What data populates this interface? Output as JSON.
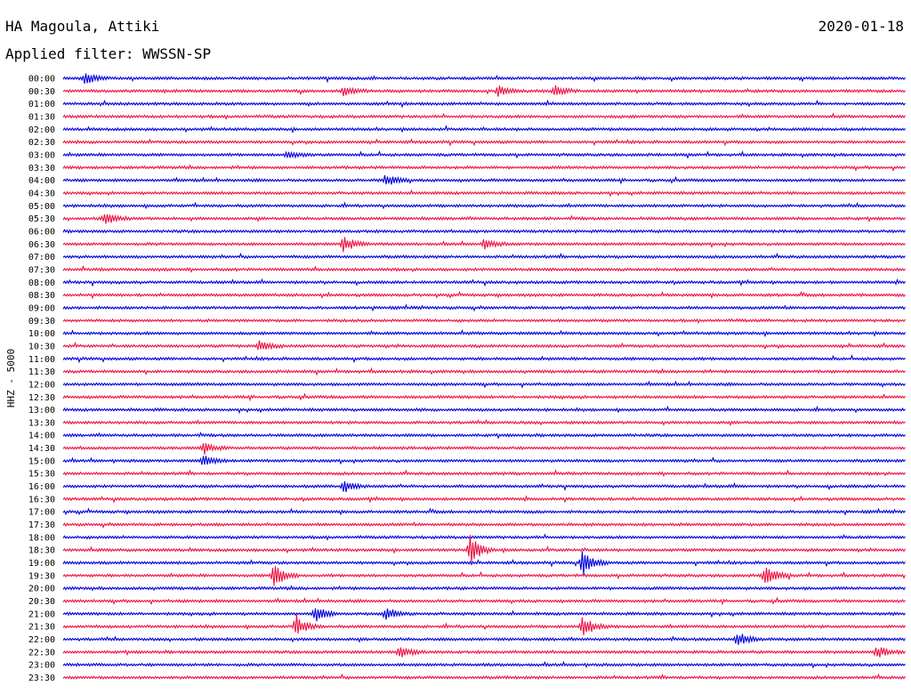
{
  "header": {
    "station": "HA Magoula, Attiki",
    "date": "2020-01-18",
    "filter": "Applied filter: WWSSN-SP"
  },
  "chart_data": {
    "type": "line",
    "ylabel": "HHZ - 5000",
    "trace_colors": [
      "#0000dd",
      "#ee1144"
    ],
    "row_labels": [
      "00:00",
      "00:30",
      "01:00",
      "01:30",
      "02:00",
      "02:30",
      "03:00",
      "03:30",
      "04:00",
      "04:30",
      "05:00",
      "05:30",
      "06:00",
      "06:30",
      "07:00",
      "07:30",
      "08:00",
      "08:30",
      "09:00",
      "09:30",
      "10:00",
      "10:30",
      "11:00",
      "11:30",
      "12:00",
      "12:30",
      "13:00",
      "13:30",
      "14:00",
      "14:30",
      "15:00",
      "15:30",
      "16:00",
      "16:30",
      "17:00",
      "17:30",
      "18:00",
      "18:30",
      "19:00",
      "19:30",
      "20:00",
      "20:30",
      "21:00",
      "21:30",
      "22:00",
      "22:30",
      "23:00",
      "23:30"
    ],
    "row_minutes": 30,
    "events": [
      {
        "row": 0,
        "minute": 0.8,
        "amp": 1.8
      },
      {
        "row": 1,
        "minute": 10.0,
        "amp": 1.3
      },
      {
        "row": 1,
        "minute": 15.5,
        "amp": 1.3
      },
      {
        "row": 1,
        "minute": 17.5,
        "amp": 1.4
      },
      {
        "row": 6,
        "minute": 8.0,
        "amp": 1.1
      },
      {
        "row": 8,
        "minute": 11.5,
        "amp": 1.6
      },
      {
        "row": 11,
        "minute": 1.5,
        "amp": 1.6
      },
      {
        "row": 13,
        "minute": 10.0,
        "amp": 2.2
      },
      {
        "row": 13,
        "minute": 15.0,
        "amp": 1.3
      },
      {
        "row": 21,
        "minute": 7.0,
        "amp": 1.4
      },
      {
        "row": 29,
        "minute": 5.0,
        "amp": 1.5
      },
      {
        "row": 30,
        "minute": 5.0,
        "amp": 1.6
      },
      {
        "row": 32,
        "minute": 10.0,
        "amp": 1.5
      },
      {
        "row": 37,
        "minute": 14.5,
        "amp": 4.0
      },
      {
        "row": 38,
        "minute": 18.5,
        "amp": 3.2
      },
      {
        "row": 39,
        "minute": 7.5,
        "amp": 3.2
      },
      {
        "row": 39,
        "minute": 25.0,
        "amp": 3.0
      },
      {
        "row": 42,
        "minute": 9.0,
        "amp": 2.0
      },
      {
        "row": 42,
        "minute": 11.5,
        "amp": 1.8
      },
      {
        "row": 43,
        "minute": 8.3,
        "amp": 2.6
      },
      {
        "row": 43,
        "minute": 18.5,
        "amp": 3.0
      },
      {
        "row": 44,
        "minute": 24.0,
        "amp": 2.0
      },
      {
        "row": 45,
        "minute": 12.0,
        "amp": 1.8
      },
      {
        "row": 45,
        "minute": 29.0,
        "amp": 1.5
      }
    ]
  }
}
